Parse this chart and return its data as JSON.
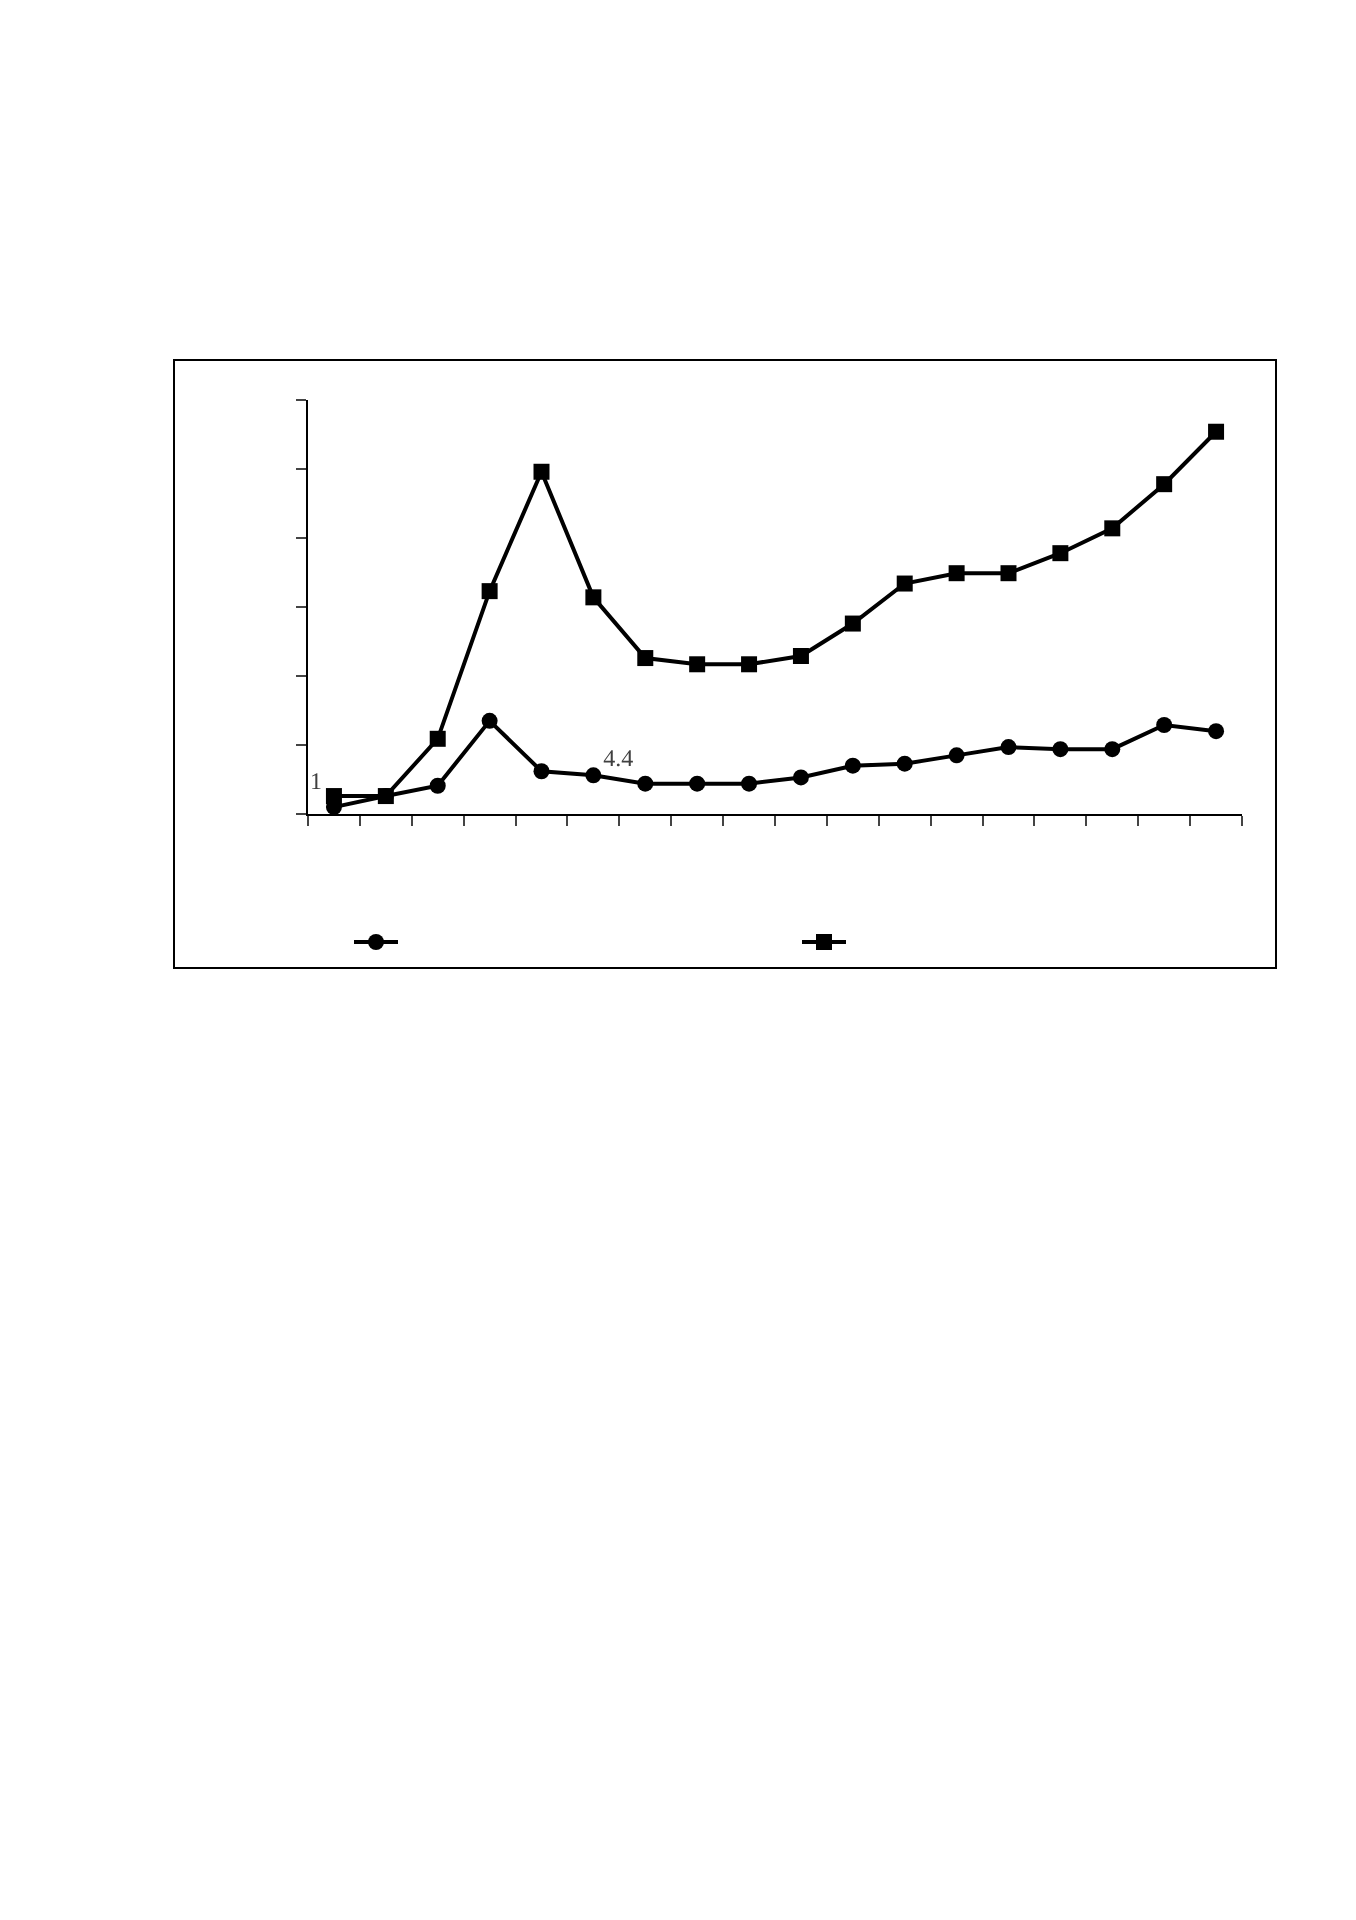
{
  "chart_data": {
    "type": "line",
    "categories": [
      null,
      null,
      null,
      null,
      null,
      null,
      null,
      null,
      null,
      null,
      null,
      null,
      null,
      null,
      null,
      null,
      null,
      null
    ],
    "series": [
      {
        "color": "#000000",
        "marker": "circle",
        "values": [
          1,
          2.6,
          4.1,
          13.5,
          6.2,
          5.6,
          4.4,
          4.4,
          4.4,
          5.3,
          7.0,
          7.3,
          8.5,
          9.7,
          9.4,
          9.4,
          12.9,
          12.0
        ],
        "value_labels": [
          "1",
          null,
          null,
          null,
          null,
          null,
          "4.4",
          null,
          null,
          null,
          null,
          null,
          null,
          null,
          null,
          null,
          null,
          null
        ]
      },
      {
        "color": "#000000",
        "marker": "square",
        "values": [
          2.6,
          2.6,
          10.9,
          32.3,
          49.6,
          31.4,
          22.6,
          21.7,
          21.7,
          22.9,
          27.6,
          33.4,
          34.9,
          34.9,
          37.8,
          41.4,
          47.8,
          55.4
        ]
      }
    ],
    "ylim": [
      0,
      60
    ],
    "yticks": [
      {
        "value": 0,
        "label": null
      },
      {
        "value": 10,
        "label": null
      },
      {
        "value": 20,
        "label": null
      },
      {
        "value": 30,
        "label": null
      },
      {
        "value": 40,
        "label": null
      },
      {
        "value": 50,
        "label": null
      },
      {
        "value": 60,
        "label": null
      }
    ],
    "line_style": "solid"
  }
}
